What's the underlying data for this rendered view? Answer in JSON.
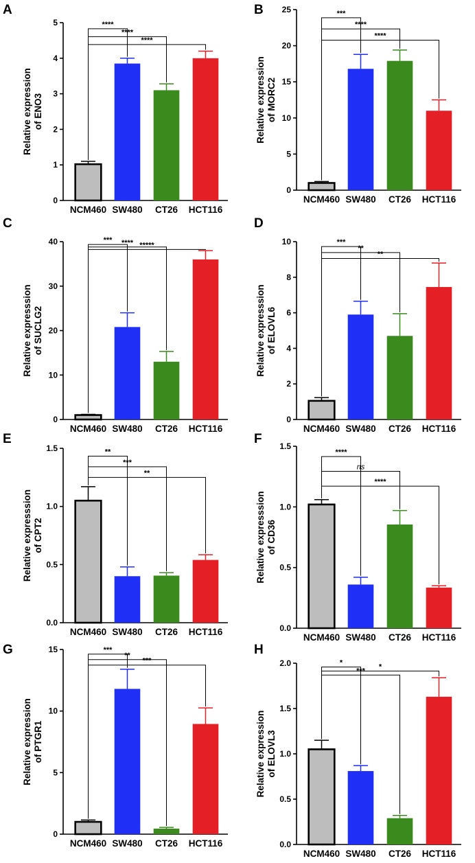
{
  "chart_data": [
    {
      "panel": "A",
      "type": "bar",
      "categories": [
        "NCM460",
        "SW480",
        "CT26",
        "HCT116"
      ],
      "colors": [
        "#bdbdbd",
        "#1f2ff5",
        "#3a8a1e",
        "#e51f26"
      ],
      "values": [
        1.02,
        3.85,
        3.1,
        4.0
      ],
      "errors": [
        0.08,
        0.15,
        0.18,
        0.2
      ],
      "ylabel": [
        "Relative expression",
        "of ENO3"
      ],
      "ylim": [
        0,
        5
      ],
      "yticks": [
        0,
        1,
        2,
        3,
        4,
        5
      ],
      "tick_labels": [
        "0",
        "1",
        "2",
        "3",
        "4",
        "5"
      ],
      "comparisons": [
        {
          "to": 1,
          "label": "****"
        },
        {
          "to": 2,
          "label": "****"
        },
        {
          "to": 3,
          "label": "****"
        }
      ]
    },
    {
      "panel": "B",
      "type": "bar",
      "categories": [
        "NCM460",
        "SW480",
        "CT26",
        "HCT116"
      ],
      "colors": [
        "#bdbdbd",
        "#1f2ff5",
        "#3a8a1e",
        "#e51f26"
      ],
      "values": [
        1.0,
        16.8,
        17.9,
        11.0
      ],
      "errors": [
        0.2,
        2.0,
        1.5,
        1.5
      ],
      "ylabel": [
        "Relative expression",
        "of MORC2"
      ],
      "ylim": [
        0,
        25
      ],
      "yticks": [
        0,
        5,
        10,
        15,
        20,
        25
      ],
      "tick_labels": [
        "0",
        "5",
        "10",
        "15",
        "20",
        "25"
      ],
      "comparisons": [
        {
          "to": 1,
          "label": "***"
        },
        {
          "to": 2,
          "label": "****"
        },
        {
          "to": 3,
          "label": "****"
        }
      ]
    },
    {
      "panel": "C",
      "type": "bar",
      "categories": [
        "NCM460",
        "SW480",
        "CT26",
        "HCT116"
      ],
      "colors": [
        "#bdbdbd",
        "#1f2ff5",
        "#3a8a1e",
        "#e51f26"
      ],
      "values": [
        1.0,
        20.8,
        13.0,
        36.0
      ],
      "errors": [
        0.15,
        3.2,
        2.3,
        2.0
      ],
      "ylabel": [
        "Relative expresssion",
        "of SUCLG2"
      ],
      "ylim": [
        0,
        40
      ],
      "yticks": [
        0,
        10,
        20,
        30,
        40
      ],
      "tick_labels": [
        "0",
        "10",
        "20",
        "30",
        "40"
      ],
      "comparisons": [
        {
          "to": 1,
          "label": "***"
        },
        {
          "to": 2,
          "label": "****"
        },
        {
          "to": 3,
          "label": "*****"
        }
      ]
    },
    {
      "panel": "D",
      "type": "bar",
      "categories": [
        "NCM460",
        "SW480",
        "CT26",
        "HCT116"
      ],
      "colors": [
        "#bdbdbd",
        "#1f2ff5",
        "#3a8a1e",
        "#e51f26"
      ],
      "values": [
        1.05,
        5.9,
        4.7,
        7.45
      ],
      "errors": [
        0.18,
        0.75,
        1.25,
        1.35
      ],
      "ylabel": [
        "Relative expresssion",
        "of ELOVL6"
      ],
      "ylim": [
        0,
        10
      ],
      "yticks": [
        0,
        2,
        4,
        6,
        8,
        10
      ],
      "tick_labels": [
        "0",
        "2",
        "4",
        "6",
        "8",
        "10"
      ],
      "comparisons": [
        {
          "to": 1,
          "label": "***"
        },
        {
          "to": 2,
          "label": "**"
        },
        {
          "to": 3,
          "label": "**"
        }
      ]
    },
    {
      "panel": "E",
      "type": "bar",
      "categories": [
        "NCM460",
        "SW480",
        "CT26",
        "HCT116"
      ],
      "colors": [
        "#bdbdbd",
        "#1f2ff5",
        "#3a8a1e",
        "#e51f26"
      ],
      "values": [
        1.05,
        0.4,
        0.405,
        0.54
      ],
      "errors": [
        0.12,
        0.08,
        0.025,
        0.045
      ],
      "ylabel": [
        "Relative expresssion",
        "of CPT2"
      ],
      "ylim": [
        0,
        1.5
      ],
      "yticks": [
        0,
        0.5,
        1.0,
        1.5
      ],
      "tick_labels": [
        "0.0",
        "0.5",
        "1.0",
        "1.5"
      ],
      "comparisons": [
        {
          "to": 1,
          "label": "**"
        },
        {
          "to": 2,
          "label": "***"
        },
        {
          "to": 3,
          "label": "**"
        }
      ]
    },
    {
      "panel": "F",
      "type": "bar",
      "categories": [
        "NCM460",
        "SW480",
        "CT26",
        "HCT116"
      ],
      "colors": [
        "#bdbdbd",
        "#1f2ff5",
        "#3a8a1e",
        "#e51f26"
      ],
      "values": [
        1.02,
        0.36,
        0.855,
        0.335
      ],
      "errors": [
        0.04,
        0.06,
        0.115,
        0.015
      ],
      "ylabel": [
        "Relative expresssion",
        "of CD36"
      ],
      "ylim": [
        0,
        1.5
      ],
      "yticks": [
        0,
        0.5,
        1.0,
        1.5
      ],
      "tick_labels": [
        "0.0",
        "0.5",
        "1.0",
        "1.5"
      ],
      "comparisons": [
        {
          "to": 1,
          "label": "****"
        },
        {
          "to": 2,
          "label": "ns"
        },
        {
          "to": 3,
          "label": "****"
        }
      ]
    },
    {
      "panel": "G",
      "type": "bar",
      "categories": [
        "NCM460",
        "SW480",
        "CT26",
        "HCT116"
      ],
      "colors": [
        "#bdbdbd",
        "#1f2ff5",
        "#3a8a1e",
        "#e51f26"
      ],
      "values": [
        1.0,
        11.8,
        0.45,
        8.95
      ],
      "errors": [
        0.15,
        1.6,
        0.1,
        1.3
      ],
      "ylabel": [
        "Relative expression",
        "of PTGR1"
      ],
      "ylim": [
        0,
        15
      ],
      "yticks": [
        0,
        5,
        10,
        15
      ],
      "tick_labels": [
        "0",
        "5",
        "10",
        "15"
      ],
      "comparisons": [
        {
          "to": 1,
          "label": "***"
        },
        {
          "to": 2,
          "label": "**"
        },
        {
          "to": 3,
          "label": "***"
        }
      ]
    },
    {
      "panel": "H",
      "type": "bar",
      "categories": [
        "NCM460",
        "SW480",
        "CT26",
        "HCT116"
      ],
      "colors": [
        "#bdbdbd",
        "#1f2ff5",
        "#3a8a1e",
        "#e51f26"
      ],
      "values": [
        1.05,
        0.81,
        0.29,
        1.63
      ],
      "errors": [
        0.1,
        0.06,
        0.03,
        0.21
      ],
      "ylabel": [
        "Relative expression",
        "of ELOVL3"
      ],
      "ylim": [
        0,
        2.0
      ],
      "yticks": [
        0,
        0.5,
        1.0,
        1.5,
        2.0
      ],
      "tick_labels": [
        "0.0",
        "0.5",
        "1.0",
        "1.5",
        "2.0"
      ],
      "comparisons": [
        {
          "to": 1,
          "label": "*"
        },
        {
          "to": 3,
          "label": "*"
        },
        {
          "to": 2,
          "label": "***"
        }
      ]
    }
  ]
}
